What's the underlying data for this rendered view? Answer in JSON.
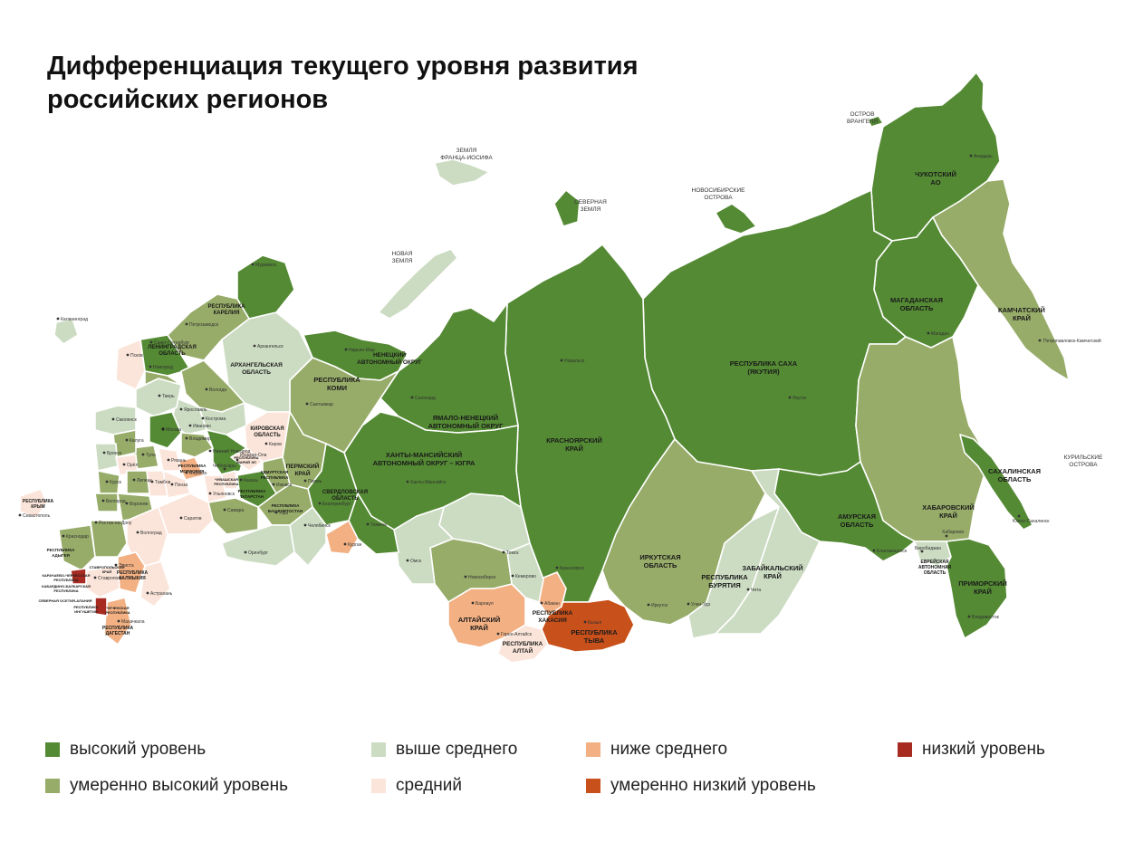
{
  "title_line1": "Дифференциация текущего уровня развития",
  "title_line2": "российских регионов",
  "colors": {
    "high": "#548a34",
    "moderately_high": "#97ac69",
    "above_average": "#ccdcc3",
    "average": "#fbe5da",
    "below_average": "#f2b083",
    "moderately_low": "#c8501a",
    "low": "#a82b22",
    "border": "#ffffff"
  },
  "legend": [
    {
      "key": "high",
      "label": "высокий уровень",
      "color": "#548a34"
    },
    {
      "key": "moderately_high",
      "label": "умеренно высокий уровень",
      "color": "#97ac69"
    },
    {
      "key": "above_average",
      "label": "выше среднего",
      "color": "#ccdcc3"
    },
    {
      "key": "average",
      "label": "средний",
      "color": "#fbe5da"
    },
    {
      "key": "below_average",
      "label": "ниже среднего",
      "color": "#f2b083"
    },
    {
      "key": "moderately_low",
      "label": "умеренно низкий уровень",
      "color": "#c8501a"
    },
    {
      "key": "low",
      "label": "низкий уровень",
      "color": "#a82b22"
    }
  ],
  "islands": {
    "wrangel": [
      "ОСТРОВ",
      "ВРАНГЕЛЯ"
    ],
    "franz_josef": [
      "ЗЕМЛЯ",
      "ФРАНЦА-ИОСИФА"
    ],
    "severnaya_zemlya": [
      "СЕВЕРНАЯ",
      "ЗЕМЛЯ"
    ],
    "novosibirsk": [
      "НОВОСИБИРСКИЕ",
      "ОСТРОВА"
    ],
    "novaya_zemlya": [
      "НОВАЯ",
      "ЗЕМЛЯ"
    ],
    "kuril": [
      "КУРИЛЬСКИЕ",
      "ОСТРОВА"
    ]
  },
  "region_labels": {
    "chukotka": [
      "ЧУКОТСКИЙ",
      "АО"
    ],
    "kamchatka": [
      "КАМЧАТСКИЙ",
      "КРАЙ"
    ],
    "magadan": [
      "МАГАДАНСКАЯ",
      "ОБЛАСТЬ"
    ],
    "sakha": [
      "РЕСПУБЛИКА САХА",
      "(ЯКУТИЯ)"
    ],
    "sakhalin": [
      "САХАЛИНСКАЯ",
      "ОБЛАСТЬ"
    ],
    "khabarovsk": [
      "ХАБАРОВСКИЙ",
      "КРАЙ"
    ],
    "amur": [
      "АМУРСКАЯ",
      "ОБЛАСТЬ"
    ],
    "jewish": [
      "ЕВРЕЙСКАЯ",
      "АВТОНОМНАЯ",
      "ОБЛАСТЬ"
    ],
    "primorsky": [
      "ПРИМОРСКИЙ",
      "КРАЙ"
    ],
    "krasnoyarsk": [
      "КРАСНОЯРСКИЙ",
      "КРАЙ"
    ],
    "irkutsk": [
      "ИРКУТСКАЯ",
      "ОБЛАСТЬ"
    ],
    "zabaikalsky": [
      "ЗАБАЙКАЛЬСКИЙ",
      "КРАЙ"
    ],
    "buryatia": [
      "РЕСПУБЛИКА",
      "БУРЯТИЯ"
    ],
    "tyva": [
      "РЕСПУБЛИКА",
      "ТЫВА"
    ],
    "khakassia": [
      "РЕСПУБЛИКА",
      "ХАКАСИЯ"
    ],
    "altai_rep": [
      "РЕСПУБЛИКА",
      "АЛТАЙ"
    ],
    "altai_krai": [
      "АЛТАЙСКИЙ",
      "КРАЙ"
    ],
    "yamal": [
      "ЯМАЛО-НЕНЕЦКИЙ",
      "АВТОНОМНЫЙ ОКРУГ"
    ],
    "khmao": [
      "ХАНТЫ-МАНСИЙСКИЙ",
      "АВТОНОМНЫЙ ОКРУГ – ЮГРА"
    ],
    "nenets": [
      "НЕНЕЦКИЙ",
      "АВТОНОМНЫЙ ОКРУГ"
    ],
    "komi": [
      "РЕСПУБЛИКА",
      "КОМИ"
    ],
    "arkhangelsk": [
      "АРХАНГЕЛЬСКАЯ",
      "ОБЛАСТЬ"
    ],
    "karelia": [
      "РЕСПУБЛИКА",
      "КАРЕЛИЯ"
    ],
    "leningrad": [
      "ЛЕНИНГРАДСКАЯ",
      "ОБЛАСТЬ"
    ],
    "perm": [
      "ПЕРМСКИЙ",
      "КРАЙ"
    ],
    "sverdlovsk": [
      "СВЕРДЛОВСКАЯ",
      "ОБЛАСТЬ"
    ],
    "kirov": [
      "КИРОВСКАЯ",
      "ОБЛАСТЬ"
    ],
    "udmurtia": [
      "УДМУРТСКАЯ",
      "РЕСПУБЛИКА"
    ],
    "tatarstan": [
      "РЕСПУБЛИКА",
      "ТАТАРСТАН"
    ],
    "bashkortostan": [
      "РЕСПУБЛИКА",
      "БАШКОРТОСТАН"
    ],
    "mordovia": [
      "РЕСПУБЛИКА",
      "МОРДОВИЯ"
    ],
    "chuvashia": [
      "ЧУВАШСКАЯ",
      "РЕСПУБЛИКА"
    ],
    "mari_el": [
      "РЕСПУБЛИКА",
      "МАРИЙ ЭЛ"
    ],
    "kalmykia": [
      "РЕСПУБЛИКА",
      "КАЛМЫКИЯ"
    ],
    "dagestan": [
      "РЕСПУБЛИКА",
      "ДАГЕСТАН"
    ],
    "crimea": [
      "РЕСПУБЛИКА",
      "КРЫМ"
    ],
    "adygea": [
      "РЕСПУБЛИКА",
      "АДЫГЕЯ"
    ],
    "kchr": [
      "КАРАЧАЕВО-ЧЕРКЕССКАЯ",
      "РЕСПУБЛИКА"
    ],
    "kbr": [
      "КАБАРДИНО-БАЛКАРСКАЯ",
      "РЕСПУБЛИКА"
    ],
    "stavropol": [
      "СТАВРОПОЛЬСКИЙ",
      "КРАЙ"
    ],
    "ingushetia": [
      "РЕСПУБЛИКА",
      "ИНГУШЕТИЯ"
    ],
    "chechnya": [
      "ЧЕЧЕНСКАЯ",
      "РЕСПУБЛИКА"
    ],
    "north_ossetia": [
      "СЕВЕРНАЯ ОСЕТИЯ-АЛАНИЯ"
    ]
  },
  "cities": {
    "anadyr": "Анадырь",
    "pk": "Петропавловск-Камчатский",
    "magadan": "Магадан",
    "yakutsk": "Якутск",
    "yuzhno": "Южно-Сахалинск",
    "khabarovsk": "Хабаровск",
    "birobidzhan": "Биробиджан",
    "blag": "Благовещенск",
    "vladivostok": "Владивосток",
    "chita": "Чита",
    "ulan_ude": "Улан-Удэ",
    "irkutsk": "Иркутск",
    "krasnoyarsk": "Красноярск",
    "kyzyl": "Кызыл",
    "abakan": "Абакан",
    "barnaul": "Барнаул",
    "gorno": "Горно-Алтайск",
    "kemerovo": "Кемерово",
    "novosibirsk": "Новосибирск",
    "tomsk": "Томск",
    "omsk": "Омск",
    "tyumen": "Тюмень",
    "kurgan": "Курган",
    "chelyabinsk": "Челябинск",
    "ekb": "Екатеринбург",
    "perm": "Пермь",
    "salekhard": "Салехард",
    "khanty": "Ханты-Мансийск",
    "naryan": "Нарьян-Мар",
    "syktyvkar": "Сыктывкар",
    "arkhangelsk": "Архангельск",
    "murmansk": "Мурманск",
    "petrozavodsk": "Петрозаводск",
    "spb": "Санкт-Петербург",
    "kaliningrad": "Калининград",
    "pskov": "Псков",
    "novgorod": "Новгород",
    "vologda": "Вологда",
    "kirov": "Киров",
    "izhevsk": "Ижевск",
    "ufa": "Уфа",
    "orenburg": "Оренбург",
    "samara": "Самара",
    "kazan": "Казань",
    "ulyanovsk": "Ульяновск",
    "saratov": "Саратов",
    "volgograd": "Волгоград",
    "astrakhan": "Астрахань",
    "elista": "Элиста",
    "rostov": "Ростов-на-Дону",
    "krasnodar": "Краснодар",
    "stavropol": "Ставрополь",
    "makhachkala": "Махачкала",
    "sevastopol": "Севастополь",
    "moscow": "Москва",
    "tver": "Тверь",
    "yaroslavl": "Ярославль",
    "kostroma": "Кострома",
    "ivanovo": "Иваново",
    "vladimir": "Владимир",
    "smolensk": "Смоленск",
    "kaluga": "Калуга",
    "tula": "Тула",
    "ryazan": "Рязань",
    "bryansk": "Брянск",
    "orel": "Орёл",
    "kursk": "Курск",
    "lipetsk": "Липецк",
    "tambov": "Тамбов",
    "belgorod": "Белгород",
    "voronezh": "Воронеж",
    "penza": "Пенза",
    "saransk": "Саранск",
    "n_novgorod": "Нижний Новгород",
    "cheboksary": "Чебоксары",
    "yoshkar": "Йошкар-Ола",
    "norilsk": "Норильск"
  }
}
